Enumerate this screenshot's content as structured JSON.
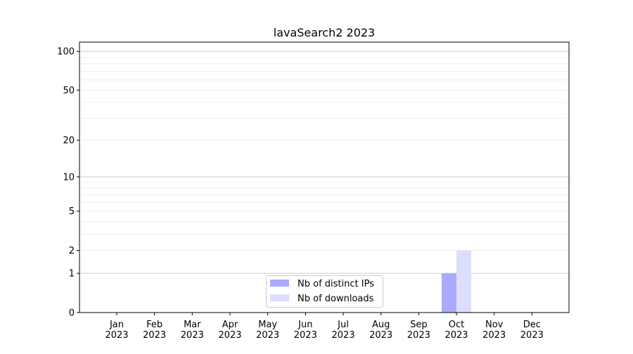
{
  "chart_data": {
    "type": "bar",
    "title": "lavaSearch2 2023",
    "xlabel": "",
    "ylabel": "",
    "yscale": "log(1+y)",
    "ylim": [
      0,
      118
    ],
    "yticks": [
      0,
      1,
      2,
      5,
      10,
      20,
      50,
      100
    ],
    "grid": true,
    "legend_position": "lower-center",
    "categories": [
      "Jan\n2023",
      "Feb\n2023",
      "Mar\n2023",
      "Apr\n2023",
      "May\n2023",
      "Jun\n2023",
      "Jul\n2023",
      "Aug\n2023",
      "Sep\n2023",
      "Oct\n2023",
      "Nov\n2023",
      "Dec\n2023"
    ],
    "series": [
      {
        "name": "Nb of distinct IPs",
        "color": "#aaaaff",
        "values": [
          0,
          0,
          0,
          0,
          0,
          0,
          0,
          0,
          0,
          1,
          0,
          0
        ]
      },
      {
        "name": "Nb of downloads",
        "color": "#ddddff",
        "values": [
          0,
          0,
          0,
          0,
          0,
          0,
          0,
          0,
          0,
          2,
          0,
          0
        ]
      }
    ]
  }
}
